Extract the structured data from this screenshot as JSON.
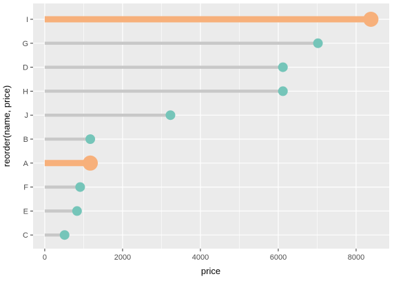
{
  "chart_data": {
    "type": "lollipop",
    "orientation": "horizontal",
    "xlabel": "price",
    "ylabel": "reorder(name, price)",
    "xlim": [
      -300,
      8850
    ],
    "xticks": [
      0,
      2000,
      4000,
      6000,
      8000
    ],
    "xtick_labels": [
      "0",
      "2000",
      "4000",
      "6000",
      "8000"
    ],
    "grid": true,
    "categories": [
      "I",
      "G",
      "D",
      "H",
      "J",
      "B",
      "A",
      "F",
      "E",
      "C"
    ],
    "values": [
      8380,
      7020,
      6120,
      6120,
      3230,
      1170,
      1170,
      910,
      830,
      510
    ],
    "highlighted": [
      "I",
      "A"
    ],
    "colors": {
      "panel": "#ebebeb",
      "grid": "#ffffff",
      "stem": "#c8c8c8",
      "point": "#75c5b9",
      "highlight": "#f7b07b",
      "tick_text": "#4d4d4d",
      "tick_mark": "#333333"
    }
  }
}
